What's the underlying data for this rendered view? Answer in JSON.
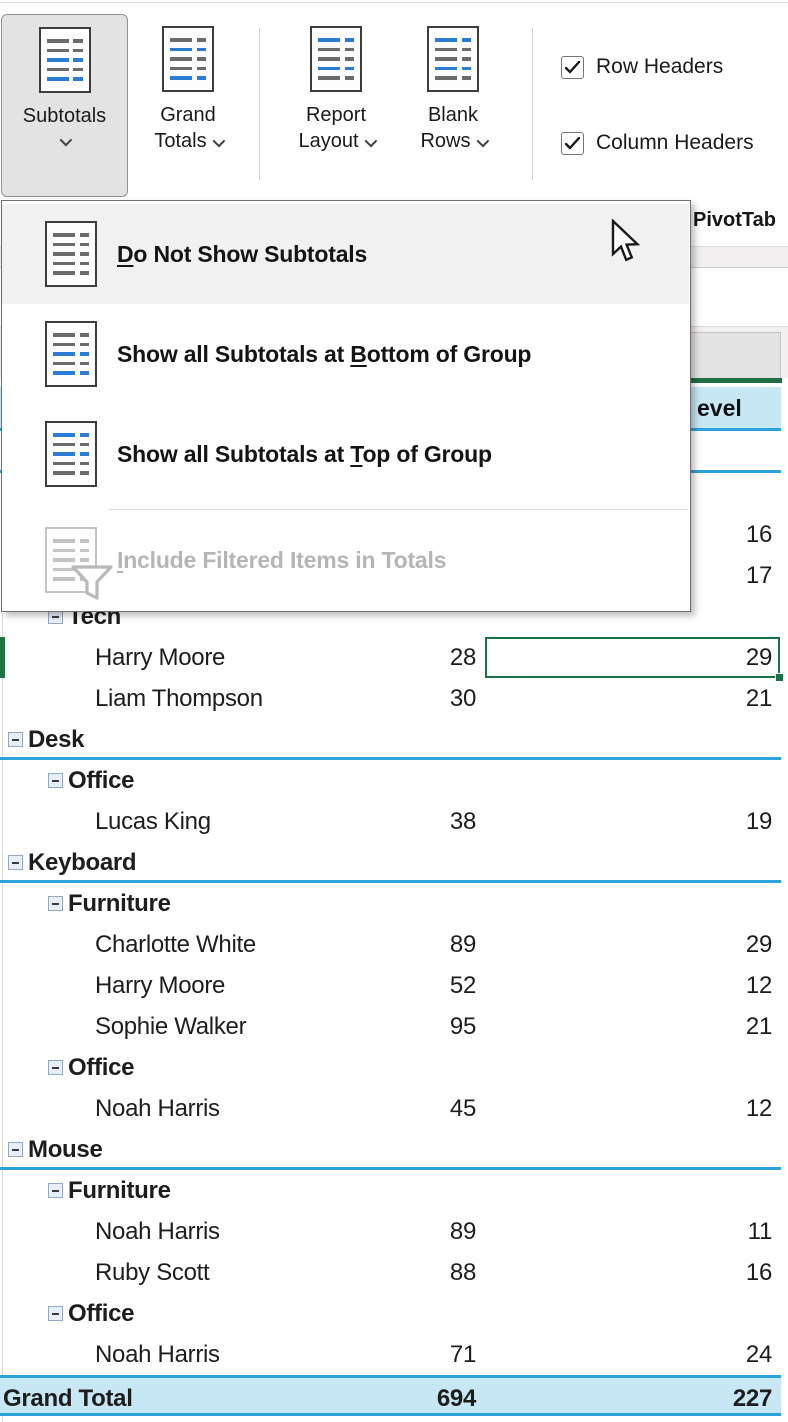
{
  "colors": {
    "excel_green": "#217346",
    "selection_green": "#157347",
    "table_blue_line": "#2ba3da",
    "table_blue_fill": "#c7e7f5",
    "icon_gray": "#6b6b6b",
    "icon_blue": "#2b7cd3",
    "icon_disabled": "#c3c3c3"
  },
  "ribbon": {
    "buttons": [
      {
        "id": "subtotals",
        "label": "Subtotals",
        "pressed": true,
        "icon": "subtotals-icon",
        "icon_lines": [
          "g",
          "g",
          "b",
          "g",
          "b"
        ]
      },
      {
        "id": "grand-totals",
        "line1": "Grand",
        "line2": "Totals",
        "icon": "grand-totals-icon",
        "icon_lines": [
          "g",
          "b",
          "g",
          "g",
          "b"
        ]
      },
      {
        "id": "report-layout",
        "line1": "Report",
        "line2": "Layout",
        "icon": "report-layout-icon",
        "icon_lines": [
          "b",
          "g",
          "g",
          "b",
          "g"
        ]
      },
      {
        "id": "blank-rows",
        "line1": "Blank",
        "line2": "Rows",
        "icon": "blank-rows-icon",
        "icon_lines": [
          "b",
          "g",
          "g",
          "b",
          "g"
        ]
      }
    ],
    "checkboxes": [
      {
        "label": "Row Headers",
        "checked": true
      },
      {
        "label": "Column Headers",
        "checked": true
      }
    ],
    "styles_group_label_partial": "PivotTab"
  },
  "menu": {
    "items": [
      {
        "name": "do-not-show-subtotals",
        "pre": "",
        "key": "D",
        "post": "o Not Show Subtotals",
        "state": "hovered",
        "icon_lines": [
          "g",
          "g",
          "g",
          "g",
          "g"
        ]
      },
      {
        "name": "show-subtotals-bottom",
        "pre": "Show all Subtotals at ",
        "key": "B",
        "post": "ottom of Group",
        "state": "normal",
        "icon_lines": [
          "g",
          "g",
          "b",
          "g",
          "b"
        ]
      },
      {
        "name": "show-subtotals-top",
        "pre": "Show all Subtotals at ",
        "key": "T",
        "post": "op of Group",
        "state": "normal",
        "icon_lines": [
          "b",
          "g",
          "b",
          "g",
          "g"
        ]
      },
      {
        "name": "include-filtered-items",
        "pre": "",
        "key": "I",
        "post": "nclude Filtered Items in Totals",
        "state": "disabled",
        "icon_lines": [
          "d",
          "d",
          "d",
          "d",
          "d"
        ]
      }
    ]
  },
  "sheet": {
    "column_header_fragment": "evel",
    "selected_cell_value": "29",
    "rows": [
      {
        "type": "product",
        "name": "",
        "v1": "",
        "v2": ""
      },
      {
        "type": "data",
        "name": "",
        "v1": "",
        "v2": ""
      },
      {
        "type": "data",
        "name": "",
        "v1": "",
        "v2": "16"
      },
      {
        "type": "data",
        "name": "",
        "v1": "",
        "v2": "17"
      },
      {
        "type": "category",
        "name": "Tech",
        "v1": "",
        "v2": ""
      },
      {
        "type": "data",
        "name": "Harry Moore",
        "v1": "28",
        "v2": "29",
        "selected": true
      },
      {
        "type": "data",
        "name": "Liam Thompson",
        "v1": "30",
        "v2": "21"
      },
      {
        "type": "product",
        "name": "Desk",
        "v1": "",
        "v2": ""
      },
      {
        "type": "category",
        "name": "Office",
        "v1": "",
        "v2": ""
      },
      {
        "type": "data",
        "name": "Lucas King",
        "v1": "38",
        "v2": "19"
      },
      {
        "type": "product",
        "name": "Keyboard",
        "v1": "",
        "v2": ""
      },
      {
        "type": "category",
        "name": "Furniture",
        "v1": "",
        "v2": ""
      },
      {
        "type": "data",
        "name": "Charlotte White",
        "v1": "89",
        "v2": "29"
      },
      {
        "type": "data",
        "name": "Harry Moore",
        "v1": "52",
        "v2": "12"
      },
      {
        "type": "data",
        "name": "Sophie Walker",
        "v1": "95",
        "v2": "21"
      },
      {
        "type": "category",
        "name": "Office",
        "v1": "",
        "v2": ""
      },
      {
        "type": "data",
        "name": "Noah Harris",
        "v1": "45",
        "v2": "12"
      },
      {
        "type": "product",
        "name": "Mouse",
        "v1": "",
        "v2": ""
      },
      {
        "type": "category",
        "name": "Furniture",
        "v1": "",
        "v2": ""
      },
      {
        "type": "data",
        "name": "Noah Harris",
        "v1": "89",
        "v2": "11"
      },
      {
        "type": "data",
        "name": "Ruby Scott",
        "v1": "88",
        "v2": "16"
      },
      {
        "type": "category",
        "name": "Office",
        "v1": "",
        "v2": ""
      },
      {
        "type": "data",
        "name": "Noah Harris",
        "v1": "71",
        "v2": "24"
      },
      {
        "type": "grand",
        "name": "Grand Total",
        "v1": "694",
        "v2": "227"
      }
    ]
  }
}
